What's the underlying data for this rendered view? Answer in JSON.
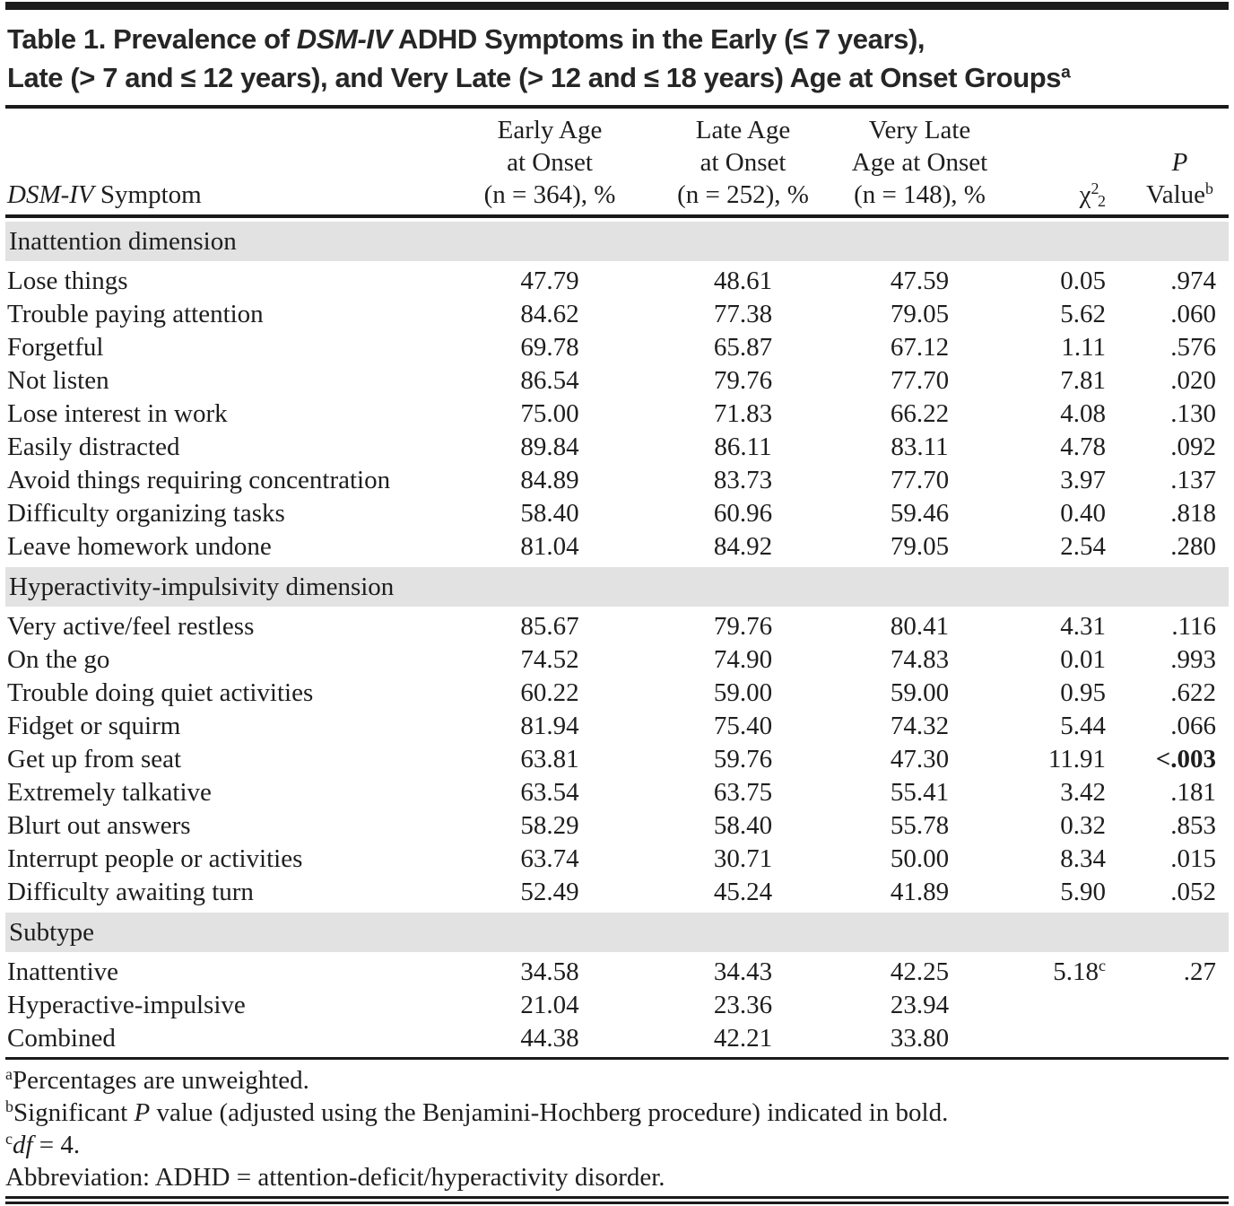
{
  "title": {
    "line1_pre": "Table 1. Prevalence of ",
    "line1_italic": "DSM-IV",
    "line1_post": " ADHD Symptoms in the Early (≤ 7 years),",
    "line2": "Late (> 7 and ≤ 12 years), and Very Late (> 12 and ≤ 18 years) Age at Onset Groups",
    "line2_sup": "a"
  },
  "header": {
    "symptom_italic": "DSM-IV",
    "symptom_rest": " Symptom",
    "col_early": [
      "Early Age",
      "at Onset",
      "(n = 364), %"
    ],
    "col_late": [
      "Late Age",
      "at Onset",
      "(n = 252), %"
    ],
    "col_very_late": [
      "Very Late",
      "Age at Onset",
      "(n = 148), %"
    ],
    "chi": {
      "symbol": "χ",
      "sup": "2",
      "sub": "2"
    },
    "col_p": {
      "line1": "P",
      "line2": "Value",
      "line2_sup": "b"
    }
  },
  "table": {
    "sections": [
      {
        "label": "Inattention dimension",
        "rows": [
          {
            "symptom": "Lose things",
            "early": "47.79",
            "late": "48.61",
            "very_late": "47.59",
            "chi2": "0.05",
            "p": ".974"
          },
          {
            "symptom": "Trouble paying attention",
            "early": "84.62",
            "late": "77.38",
            "very_late": "79.05",
            "chi2": "5.62",
            "p": ".060"
          },
          {
            "symptom": "Forgetful",
            "early": "69.78",
            "late": "65.87",
            "very_late": "67.12",
            "chi2": "1.11",
            "p": ".576"
          },
          {
            "symptom": "Not listen",
            "early": "86.54",
            "late": "79.76",
            "very_late": "77.70",
            "chi2": "7.81",
            "p": ".020"
          },
          {
            "symptom": "Lose interest in work",
            "early": "75.00",
            "late": "71.83",
            "very_late": "66.22",
            "chi2": "4.08",
            "p": ".130"
          },
          {
            "symptom": "Easily distracted",
            "early": "89.84",
            "late": "86.11",
            "very_late": "83.11",
            "chi2": "4.78",
            "p": ".092"
          },
          {
            "symptom": "Avoid things requiring concentration",
            "early": "84.89",
            "late": "83.73",
            "very_late": "77.70",
            "chi2": "3.97",
            "p": ".137"
          },
          {
            "symptom": "Difficulty organizing tasks",
            "early": "58.40",
            "late": "60.96",
            "very_late": "59.46",
            "chi2": "0.40",
            "p": ".818"
          },
          {
            "symptom": "Leave homework undone",
            "early": "81.04",
            "late": "84.92",
            "very_late": "79.05",
            "chi2": "2.54",
            "p": ".280"
          }
        ]
      },
      {
        "label": "Hyperactivity-impulsivity dimension",
        "rows": [
          {
            "symptom": "Very active/feel restless",
            "early": "85.67",
            "late": "79.76",
            "very_late": "80.41",
            "chi2": "4.31",
            "p": ".116"
          },
          {
            "symptom": "On the go",
            "early": "74.52",
            "late": "74.90",
            "very_late": "74.83",
            "chi2": "0.01",
            "p": ".993"
          },
          {
            "symptom": "Trouble doing quiet activities",
            "early": "60.22",
            "late": "59.00",
            "very_late": "59.00",
            "chi2": "0.95",
            "p": ".622"
          },
          {
            "symptom": "Fidget or squirm",
            "early": "81.94",
            "late": "75.40",
            "very_late": "74.32",
            "chi2": "5.44",
            "p": ".066"
          },
          {
            "symptom": "Get up from seat",
            "early": "63.81",
            "late": "59.76",
            "very_late": "47.30",
            "chi2": "11.91",
            "p": "<.003",
            "p_bold": true
          },
          {
            "symptom": "Extremely talkative",
            "early": "63.54",
            "late": "63.75",
            "very_late": "55.41",
            "chi2": "3.42",
            "p": ".181"
          },
          {
            "symptom": "Blurt out answers",
            "early": "58.29",
            "late": "58.40",
            "very_late": "55.78",
            "chi2": "0.32",
            "p": ".853"
          },
          {
            "symptom": "Interrupt people or activities",
            "early": "63.74",
            "late": "30.71",
            "very_late": "50.00",
            "chi2": "8.34",
            "p": ".015"
          },
          {
            "symptom": "Difficulty awaiting turn",
            "early": "52.49",
            "late": "45.24",
            "very_late": "41.89",
            "chi2": "5.90",
            "p": ".052"
          }
        ]
      },
      {
        "label": "Subtype",
        "rows": [
          {
            "symptom": "Inattentive",
            "early": "34.58",
            "late": "34.43",
            "very_late": "42.25",
            "chi2": "5.18",
            "chi2_sup": "c",
            "p": ".27"
          },
          {
            "symptom": "Hyperactive-impulsive",
            "early": "21.04",
            "late": "23.36",
            "very_late": "23.94",
            "chi2": "",
            "p": ""
          },
          {
            "symptom": "Combined",
            "early": "44.38",
            "late": "42.21",
            "very_late": "33.80",
            "chi2": "",
            "p": ""
          }
        ]
      }
    ]
  },
  "footnotes": [
    {
      "sup": "a",
      "parts": [
        {
          "text": "Percentages are unweighted."
        }
      ]
    },
    {
      "sup": "b",
      "parts": [
        {
          "text": "Significant "
        },
        {
          "text": "P",
          "italic": true
        },
        {
          "text": " value (adjusted using the Benjamini-Hochberg procedure) indicated in bold."
        }
      ]
    },
    {
      "sup": "c",
      "parts": [
        {
          "text": "df",
          "italic": true
        },
        {
          "text": " = 4."
        }
      ]
    },
    {
      "sup": "",
      "parts": [
        {
          "text": "Abbreviation: ADHD = attention-deficit/hyperactivity disorder."
        }
      ]
    }
  ],
  "colors": {
    "section_bar": "#e2e2e2",
    "rule": "#1a1a1a",
    "text": "#1e1e1e"
  }
}
